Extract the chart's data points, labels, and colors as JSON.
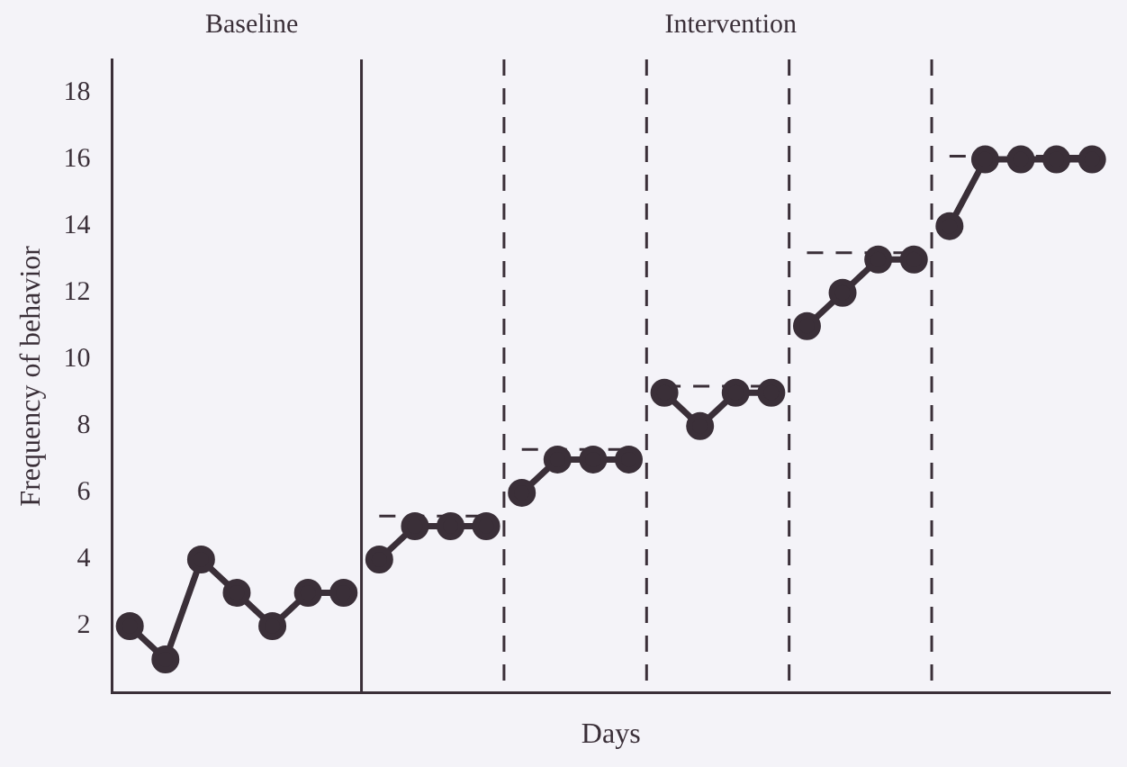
{
  "chart_data": {
    "type": "line",
    "xlabel": "Days",
    "ylabel": "Frequency of behavior",
    "annotations": [
      "Baseline",
      "Intervention"
    ],
    "ylim": [
      0,
      19
    ],
    "yticks": [
      2,
      4,
      6,
      8,
      10,
      12,
      14,
      16,
      18
    ],
    "tick_labels": "y",
    "grid": false,
    "legend": false,
    "marker": "circle",
    "line_style": "solid",
    "categories": [
      null,
      null,
      null,
      null,
      null,
      null,
      null,
      null,
      null,
      null,
      null,
      null,
      null,
      null,
      null,
      null,
      null,
      null,
      null,
      null,
      null,
      null,
      null,
      null,
      null,
      null,
      null,
      null
    ],
    "series": [
      {
        "color": "#3a2f38",
        "values": [
          2,
          1,
          4,
          3,
          2,
          3,
          3,
          null,
          null,
          null,
          null,
          null,
          null,
          null,
          null,
          null,
          null,
          null,
          null,
          null,
          null,
          null,
          null,
          null,
          null,
          null,
          null,
          null
        ]
      },
      {
        "color": "#3a2f38",
        "values": [
          null,
          null,
          null,
          null,
          null,
          null,
          null,
          4,
          5,
          5,
          5,
          null,
          null,
          null,
          null,
          null,
          null,
          null,
          null,
          null,
          null,
          null,
          null,
          null,
          null,
          null,
          null,
          null
        ]
      },
      {
        "color": "#3a2f38",
        "values": [
          null,
          null,
          null,
          null,
          null,
          null,
          null,
          null,
          null,
          null,
          null,
          6,
          7,
          7,
          7,
          null,
          null,
          null,
          null,
          null,
          null,
          null,
          null,
          null,
          null,
          null,
          null,
          null
        ]
      },
      {
        "color": "#3a2f38",
        "values": [
          null,
          null,
          null,
          null,
          null,
          null,
          null,
          null,
          null,
          null,
          null,
          null,
          null,
          null,
          null,
          9,
          8,
          9,
          9,
          null,
          null,
          null,
          null,
          null,
          null,
          null,
          null,
          null
        ]
      },
      {
        "color": "#3a2f38",
        "values": [
          null,
          null,
          null,
          null,
          null,
          null,
          null,
          null,
          null,
          null,
          null,
          null,
          null,
          null,
          null,
          null,
          null,
          null,
          null,
          11,
          12,
          13,
          13,
          null,
          null,
          null,
          null,
          null
        ]
      },
      {
        "color": "#3a2f38",
        "values": [
          null,
          null,
          null,
          null,
          null,
          null,
          null,
          null,
          null,
          null,
          null,
          null,
          null,
          null,
          null,
          null,
          null,
          null,
          null,
          null,
          null,
          null,
          null,
          14,
          16,
          16,
          16,
          16
        ]
      },
      {
        "color": "#3a2f38",
        "marker": "none",
        "line_style": "dashed",
        "values": [
          null,
          null,
          null,
          null,
          null,
          null,
          null,
          5.3,
          5.3,
          5.3,
          5.3,
          null,
          null,
          null,
          null,
          null,
          null,
          null,
          null,
          null,
          null,
          null,
          null,
          null,
          null,
          null,
          null,
          null
        ]
      },
      {
        "color": "#3a2f38",
        "marker": "none",
        "line_style": "dashed",
        "values": [
          null,
          null,
          null,
          null,
          null,
          null,
          null,
          null,
          null,
          null,
          null,
          7.3,
          7.3,
          7.3,
          7.3,
          null,
          null,
          null,
          null,
          null,
          null,
          null,
          null,
          null,
          null,
          null,
          null,
          null
        ]
      },
      {
        "color": "#3a2f38",
        "marker": "none",
        "line_style": "dashed",
        "values": [
          null,
          null,
          null,
          null,
          null,
          null,
          null,
          null,
          null,
          null,
          null,
          null,
          null,
          null,
          null,
          9.2,
          9.2,
          9.2,
          9.2,
          null,
          null,
          null,
          null,
          null,
          null,
          null,
          null,
          null
        ]
      },
      {
        "color": "#3a2f38",
        "marker": "none",
        "line_style": "dashed",
        "values": [
          null,
          null,
          null,
          null,
          null,
          null,
          null,
          null,
          null,
          null,
          null,
          null,
          null,
          null,
          null,
          null,
          null,
          null,
          null,
          13.2,
          13.2,
          13.2,
          13.2,
          null,
          null,
          null,
          null,
          null
        ]
      },
      {
        "color": "#3a2f38",
        "marker": "none",
        "line_style": "dashed",
        "values": [
          null,
          null,
          null,
          null,
          null,
          null,
          null,
          null,
          null,
          null,
          null,
          null,
          null,
          null,
          null,
          null,
          null,
          null,
          null,
          null,
          null,
          null,
          null,
          16.1,
          16.1,
          16.1,
          16.1,
          16.1
        ]
      }
    ]
  }
}
